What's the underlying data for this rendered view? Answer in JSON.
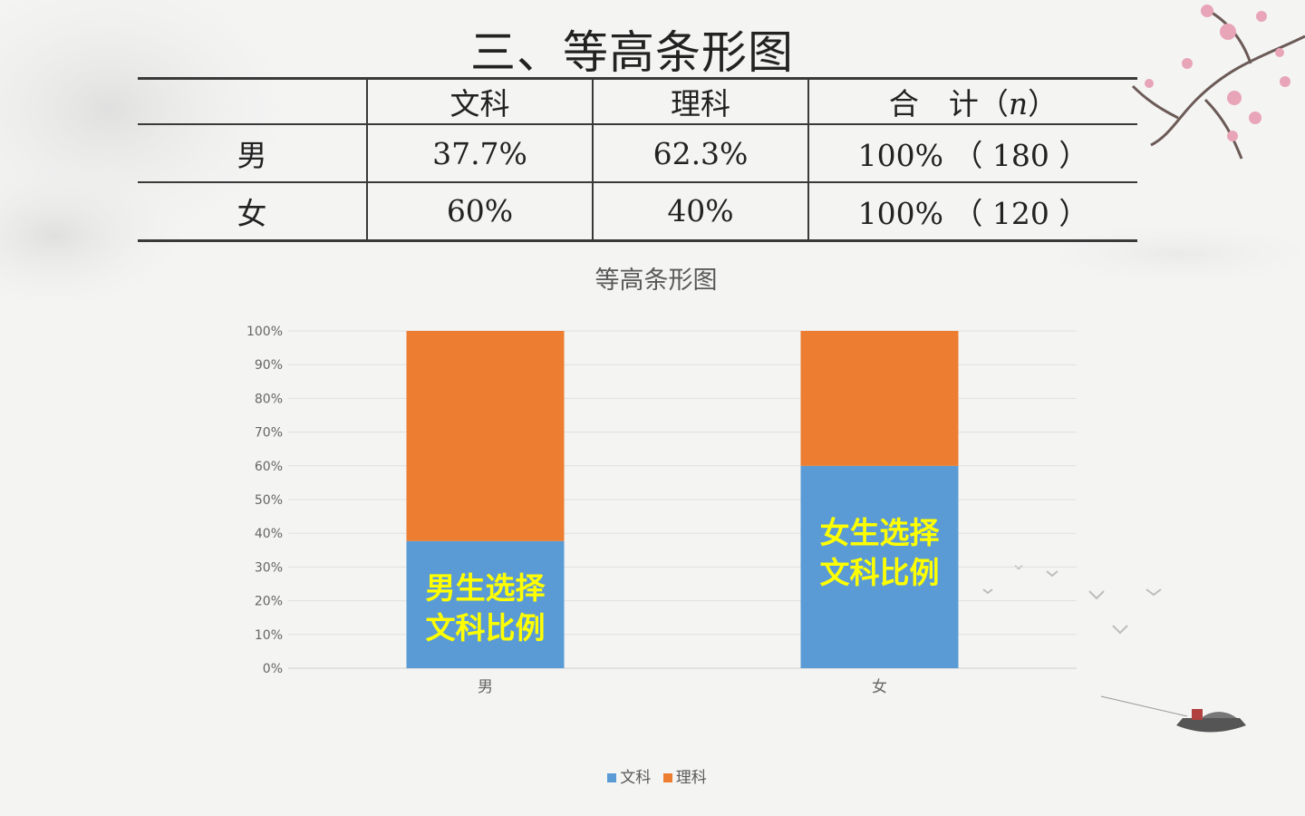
{
  "title": "三、等高条形图",
  "table": {
    "headers": [
      "",
      "文科",
      "理科",
      "合　计（",
      "n",
      "）"
    ],
    "rows": [
      {
        "label": "男",
        "wenke": "37.7%",
        "like": "62.3%",
        "total": "100% （ 180 ）"
      },
      {
        "label": "女",
        "wenke": "60%",
        "like": "40%",
        "total": "100% （ 120 ）"
      }
    ]
  },
  "chart_data": {
    "type": "bar",
    "stacked": true,
    "title": "等高条形图",
    "categories": [
      "男",
      "女"
    ],
    "series": [
      {
        "name": "文科",
        "values": [
          0.377,
          0.6
        ],
        "color": "#5b9bd5"
      },
      {
        "name": "理科",
        "values": [
          0.623,
          0.4
        ],
        "color": "#ed7d31"
      }
    ],
    "ylim": [
      0,
      1
    ],
    "yticks": [
      "0%",
      "10%",
      "20%",
      "30%",
      "40%",
      "50%",
      "60%",
      "70%",
      "80%",
      "90%",
      "100%"
    ],
    "grid": true,
    "legend": "bottom",
    "annotations": [
      {
        "category": "男",
        "lines": [
          "男生选择",
          "文科比例"
        ]
      },
      {
        "category": "女",
        "lines": [
          "女生选择",
          "文科比例"
        ]
      }
    ]
  }
}
